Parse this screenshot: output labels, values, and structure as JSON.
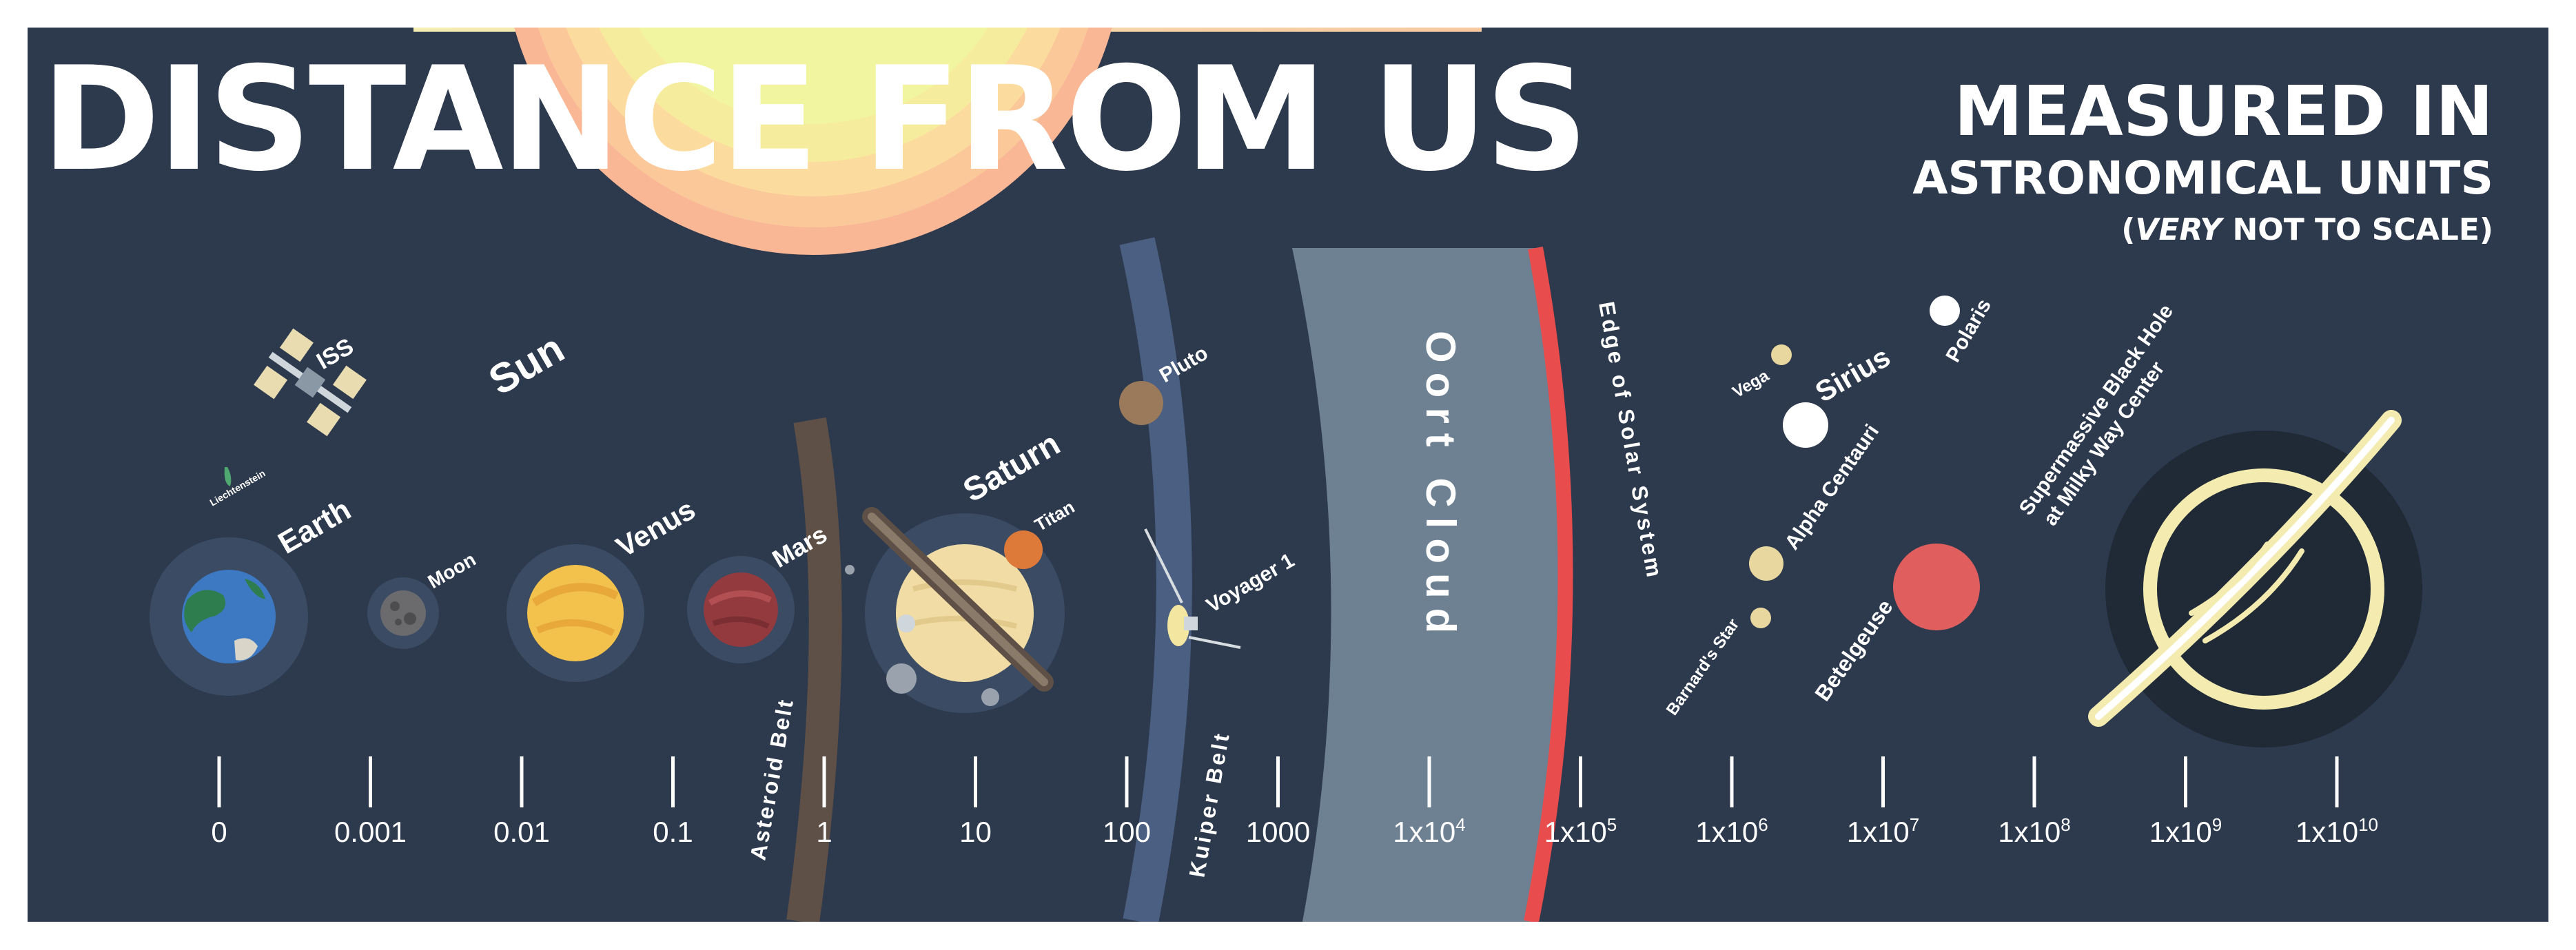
{
  "title": "DISTANCE FROM US",
  "subtitle_line1": "MEASURED IN",
  "subtitle_line2": "ASTRONOMICAL UNITS",
  "note_prefix": "(",
  "note_emphasis": "VERY",
  "note_suffix": " NOT TO SCALE)",
  "objects": {
    "iss": "ISS",
    "liechtenstein": "Liechtenstein",
    "earth": "Earth",
    "moon": "Moon",
    "sun": "Sun",
    "venus": "Venus",
    "mars": "Mars",
    "asteroid_belt": "Asteroid Belt",
    "saturn": "Saturn",
    "titan": "Titan",
    "pluto": "Pluto",
    "voyager": "Voyager 1",
    "kuiper_belt": "Kuiper Belt",
    "oort_cloud": "Oort Cloud",
    "edge": "Edge of Solar System",
    "vega": "Vega",
    "sirius": "Sirius",
    "polaris": "Polaris",
    "alpha_centauri": "Alpha Centauri",
    "barnards_star": "Barnard's Star",
    "betelgeuse": "Betelgeuse",
    "black_hole_1": "Supermassive Black Hole",
    "black_hole_2": "at Milky Way Center"
  },
  "scale": {
    "ticks": [
      {
        "base": "0",
        "exp": ""
      },
      {
        "base": "0.001",
        "exp": ""
      },
      {
        "base": "0.01",
        "exp": ""
      },
      {
        "base": "0.1",
        "exp": ""
      },
      {
        "base": "1",
        "exp": ""
      },
      {
        "base": "10",
        "exp": ""
      },
      {
        "base": "100",
        "exp": ""
      },
      {
        "base": "1000",
        "exp": ""
      },
      {
        "base": "1x10",
        "exp": "4"
      },
      {
        "base": "1x10",
        "exp": "5"
      },
      {
        "base": "1x10",
        "exp": "6"
      },
      {
        "base": "1x10",
        "exp": "7"
      },
      {
        "base": "1x10",
        "exp": "8"
      },
      {
        "base": "1x10",
        "exp": "9"
      },
      {
        "base": "1x10",
        "exp": "10"
      }
    ]
  },
  "colors": {
    "background": "#2d3a4d",
    "sun": "#f2f5a0",
    "oort": "#6e8193",
    "edge": "#e84c4c",
    "kuiper": "#4a5f82",
    "asteroid": "#5e5046",
    "betelgeuse": "#e05e5e"
  }
}
